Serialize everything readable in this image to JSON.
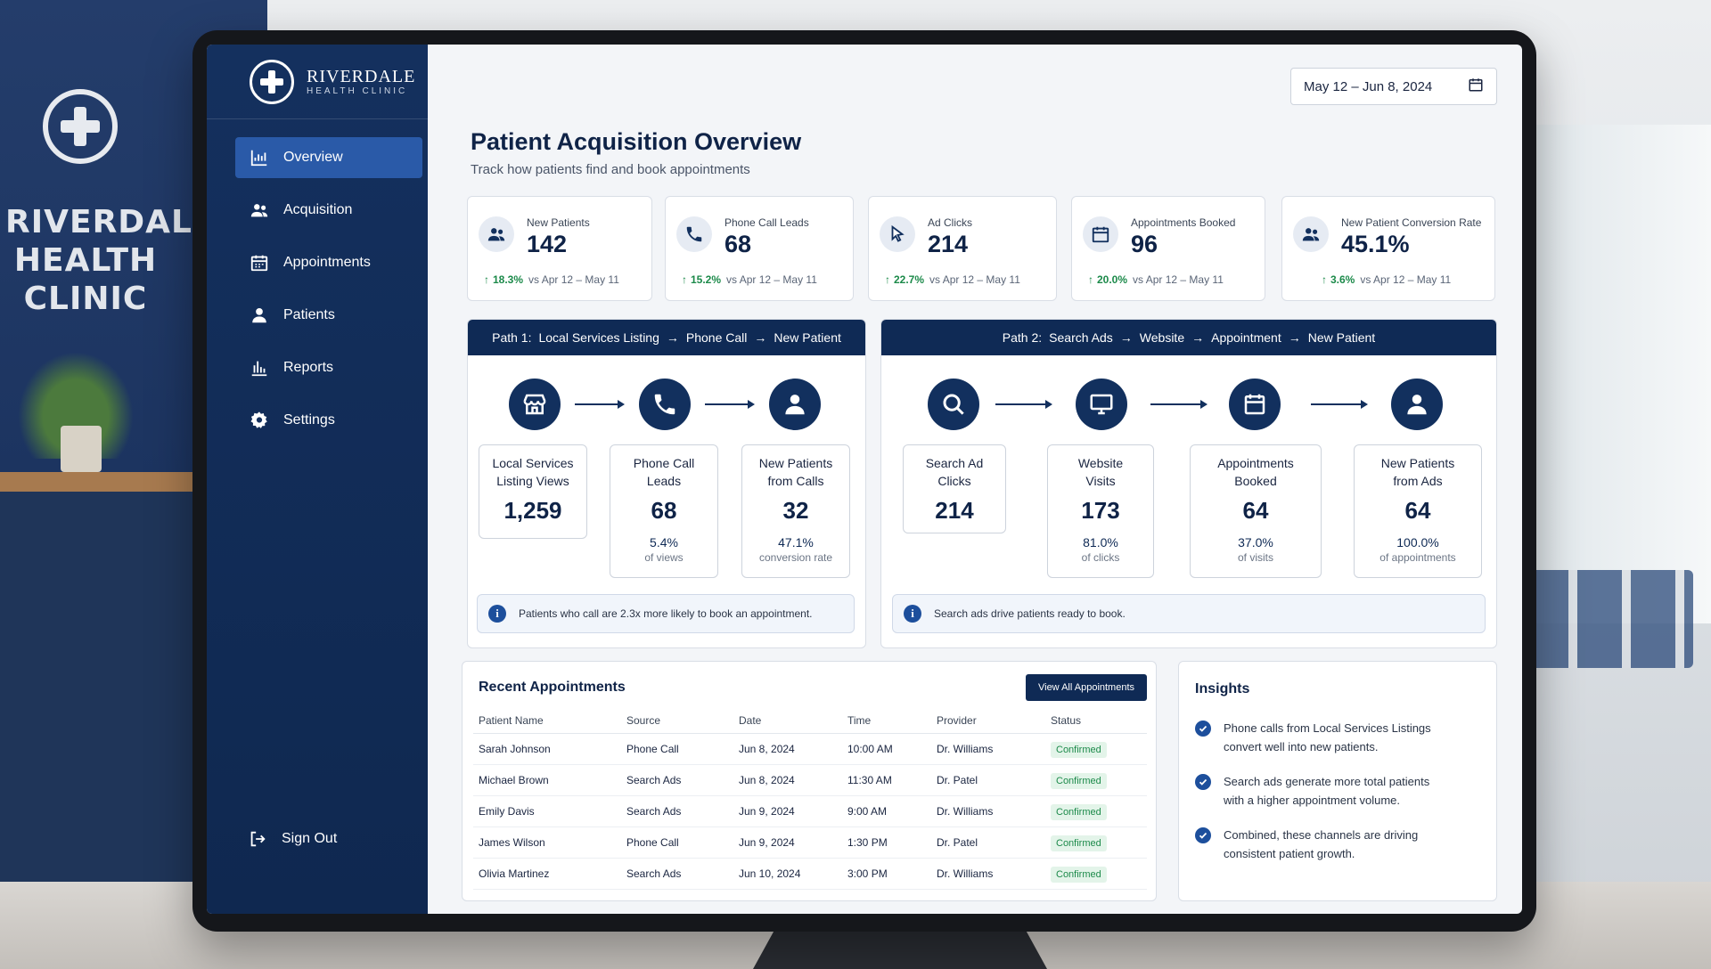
{
  "wall_sign": {
    "line1": "RIVERDALE",
    "line2": "HEALTH",
    "line3": "CLINIC"
  },
  "brand": {
    "name": "RIVERDALE",
    "sub": "HEALTH CLINIC"
  },
  "sidebar": {
    "items": [
      {
        "label": "Overview",
        "icon": "bar-chart-icon",
        "active": true
      },
      {
        "label": "Acquisition",
        "icon": "users-icon"
      },
      {
        "label": "Appointments",
        "icon": "calendar-icon"
      },
      {
        "label": "Patients",
        "icon": "user-icon"
      },
      {
        "label": "Reports",
        "icon": "reports-icon"
      },
      {
        "label": "Settings",
        "icon": "gear-icon"
      }
    ],
    "signout": "Sign Out"
  },
  "header": {
    "date_range": "May 12 – Jun 8, 2024",
    "title": "Patient Acquisition Overview",
    "subtitle": "Track how patients find and book appointments"
  },
  "kpis": [
    {
      "label": "New Patients",
      "value": "142",
      "delta": "18.3%",
      "compare": "vs Apr 12 – May 11",
      "icon": "users-icon"
    },
    {
      "label": "Phone Call Leads",
      "value": "68",
      "delta": "15.2%",
      "compare": "vs Apr 12 – May 11",
      "icon": "phone-icon"
    },
    {
      "label": "Ad Clicks",
      "value": "214",
      "delta": "22.7%",
      "compare": "vs Apr 12 – May 11",
      "icon": "cursor-icon"
    },
    {
      "label": "Appointments Booked",
      "value": "96",
      "delta": "20.0%",
      "compare": "vs Apr 12 – May 11",
      "icon": "calendar-icon"
    },
    {
      "label": "New Patient Conversion Rate",
      "value": "45.1%",
      "delta": "3.6%",
      "compare": "vs Apr 12 – May 11",
      "icon": "users-icon"
    }
  ],
  "path1": {
    "label": "Path 1:",
    "steps": [
      "Local Services Listing",
      "Phone Call",
      "New Patient"
    ],
    "stages": [
      {
        "label_l1": "Local Services",
        "label_l2": "Listing Views",
        "value": "1,259",
        "pct": "",
        "note": ""
      },
      {
        "label_l1": "Phone Call",
        "label_l2": "Leads",
        "value": "68",
        "pct": "5.4%",
        "note": "of views"
      },
      {
        "label_l1": "New Patients",
        "label_l2": "from Calls",
        "value": "32",
        "pct": "47.1%",
        "note": "conversion rate"
      }
    ],
    "tip": "Patients who call are 2.3x more likely to book an appointment."
  },
  "path2": {
    "label": "Path 2:",
    "steps": [
      "Search Ads",
      "Website",
      "Appointment",
      "New Patient"
    ],
    "stages": [
      {
        "label_l1": "Search Ad",
        "label_l2": "Clicks",
        "value": "214",
        "pct": "",
        "note": ""
      },
      {
        "label_l1": "Website",
        "label_l2": "Visits",
        "value": "173",
        "pct": "81.0%",
        "note": "of clicks"
      },
      {
        "label_l1": "Appointments",
        "label_l2": "Booked",
        "value": "64",
        "pct": "37.0%",
        "note": "of visits"
      },
      {
        "label_l1": "New Patients",
        "label_l2": "from Ads",
        "value": "64",
        "pct": "100.0%",
        "note": "of appointments"
      }
    ],
    "tip": "Search ads drive patients ready to book."
  },
  "appointments": {
    "title": "Recent Appointments",
    "view_all": "View All Appointments",
    "columns": [
      "Patient Name",
      "Source",
      "Date",
      "Time",
      "Provider",
      "Status"
    ],
    "rows": [
      [
        "Sarah Johnson",
        "Phone Call",
        "Jun 8, 2024",
        "10:00 AM",
        "Dr. Williams",
        "Confirmed"
      ],
      [
        "Michael Brown",
        "Search Ads",
        "Jun 8, 2024",
        "11:30 AM",
        "Dr. Patel",
        "Confirmed"
      ],
      [
        "Emily Davis",
        "Search Ads",
        "Jun 9, 2024",
        "9:00 AM",
        "Dr. Williams",
        "Confirmed"
      ],
      [
        "James Wilson",
        "Phone Call",
        "Jun 9, 2024",
        "1:30 PM",
        "Dr. Patel",
        "Confirmed"
      ],
      [
        "Olivia Martinez",
        "Search Ads",
        "Jun 10, 2024",
        "3:00 PM",
        "Dr. Williams",
        "Confirmed"
      ]
    ]
  },
  "insights": {
    "title": "Insights",
    "items": [
      {
        "l1": "Phone calls from Local Services Listings",
        "l2": "convert well into new patients."
      },
      {
        "l1": "Search ads generate more total patients",
        "l2": "with a higher appointment volume."
      },
      {
        "l1": "Combined, these channels are driving",
        "l2": "consistent patient growth."
      }
    ]
  },
  "colors": {
    "navy": "#0f2a55",
    "accent": "#2a5aa8",
    "positive": "#1c8a4a"
  }
}
